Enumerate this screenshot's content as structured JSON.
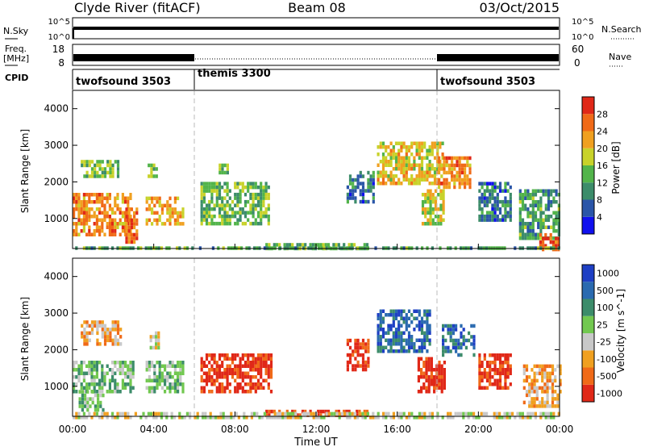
{
  "header": {
    "station": "Clyde River (fitACF)",
    "beam": "Beam 08",
    "date": "03/Oct/2015"
  },
  "strips": {
    "nsky_label": "N.Sky",
    "nsky_ticks": [
      "10^5",
      "10^0"
    ],
    "nsearch_label": "N.Search",
    "nsearch_ticks": [
      "10^5",
      "10^0"
    ],
    "freq_label_1": "Freq.",
    "freq_label_2": "[MHz]",
    "freq_ticks": [
      "18",
      "8"
    ],
    "nave_label": "Nave",
    "nave_ticks": [
      "60",
      "0"
    ],
    "cpid_label": "CPID",
    "cpid_segments": [
      {
        "name": "twofsound 3503",
        "start": 0,
        "end": 6
      },
      {
        "name": "themis 3300",
        "start": 6,
        "end": 18
      },
      {
        "name": "twofsound 3503",
        "start": 18,
        "end": 24
      }
    ]
  },
  "colors": {
    "power": [
      "#1010ee",
      "#2a55a8",
      "#3c8c6a",
      "#52b44a",
      "#c8d22a",
      "#f0a020",
      "#f06a18",
      "#e02818"
    ],
    "velocity": [
      "#1e3fc4",
      "#2a6ab0",
      "#3c8c6a",
      "#72c850",
      "#c8c8c8",
      "#f0a020",
      "#f06a18",
      "#e02818"
    ],
    "ground_scatter": "#c8c8c8"
  },
  "chart_data": [
    {
      "type": "heatmap",
      "panel": "power",
      "xlabel": "",
      "ylabel": "Slant Range [km]",
      "xlim": [
        0,
        24
      ],
      "ylim": [
        180,
        4500
      ],
      "y_ticks": [
        1000,
        2000,
        3000,
        4000
      ],
      "colorbar": {
        "label": "Power [dB]",
        "ticks": [
          "4",
          "8",
          "12",
          "16",
          "20",
          "24",
          "28"
        ],
        "range": [
          0,
          32
        ]
      },
      "regions": [
        {
          "t0": 0.0,
          "t1": 2.8,
          "r0": 600,
          "r1": 1700,
          "value": 24
        },
        {
          "t0": 2.6,
          "t1": 3.2,
          "r0": 350,
          "r1": 1300,
          "value": 26
        },
        {
          "t0": 0.4,
          "t1": 2.2,
          "r0": 2200,
          "r1": 2600,
          "value": 14
        },
        {
          "t0": 3.7,
          "t1": 4.1,
          "r0": 2200,
          "r1": 2500,
          "value": 16
        },
        {
          "t0": 3.6,
          "t1": 5.4,
          "r0": 900,
          "r1": 1600,
          "value": 22
        },
        {
          "t0": 6.3,
          "t1": 9.7,
          "r0": 900,
          "r1": 2000,
          "value": 14
        },
        {
          "t0": 7.2,
          "t1": 7.6,
          "r0": 2300,
          "r1": 2500,
          "value": 14
        },
        {
          "t0": 13.5,
          "t1": 14.8,
          "r0": 1500,
          "r1": 2300,
          "value": 8
        },
        {
          "t0": 15.0,
          "t1": 18.2,
          "r0": 2000,
          "r1": 3100,
          "value": 20
        },
        {
          "t0": 17.2,
          "t1": 18.3,
          "r0": 900,
          "r1": 1800,
          "value": 18
        },
        {
          "t0": 18.0,
          "t1": 19.6,
          "r0": 1900,
          "r1": 2700,
          "value": 24
        },
        {
          "t0": 20.0,
          "t1": 21.6,
          "r0": 1000,
          "r1": 2000,
          "value": 8
        },
        {
          "t0": 22.0,
          "t1": 24.0,
          "r0": 500,
          "r1": 1800,
          "value": 12
        },
        {
          "t0": 23.0,
          "t1": 24.0,
          "r0": 200,
          "r1": 600,
          "value": 28
        },
        {
          "t0": 9.5,
          "t1": 14.5,
          "r0": 200,
          "r1": 330,
          "value": 14
        },
        {
          "t0": 0.0,
          "t1": 24.0,
          "r0": 180,
          "r1": 240,
          "value": 12
        }
      ]
    },
    {
      "type": "heatmap",
      "panel": "velocity",
      "xlabel": "Time UT",
      "ylabel": "Slant Range [km]",
      "xlim": [
        0,
        24
      ],
      "ylim": [
        180,
        4500
      ],
      "x_ticks": [
        "00:00",
        "04:00",
        "08:00",
        "12:00",
        "16:00",
        "20:00",
        "00:00"
      ],
      "y_ticks": [
        1000,
        2000,
        3000,
        4000
      ],
      "colorbar": {
        "label": "Velocity [m s^-1]",
        "ticks": [
          "1000",
          "500",
          "100",
          "25",
          "-25",
          "-100",
          "-500",
          "-1000"
        ]
      },
      "regions": [
        {
          "t0": 0.0,
          "t1": 3.0,
          "r0": 900,
          "r1": 1700,
          "value": 3
        },
        {
          "t0": 0.4,
          "t1": 2.4,
          "r0": 2200,
          "r1": 2800,
          "value": 5
        },
        {
          "t0": 0.3,
          "t1": 1.5,
          "r0": 400,
          "r1": 900,
          "value": 3
        },
        {
          "t0": 3.6,
          "t1": 5.4,
          "r0": 900,
          "r1": 1700,
          "value": 3
        },
        {
          "t0": 3.8,
          "t1": 4.2,
          "r0": 2100,
          "r1": 2500,
          "value": 4
        },
        {
          "t0": 6.3,
          "t1": 9.8,
          "r0": 900,
          "r1": 1900,
          "value": 7
        },
        {
          "t0": 13.5,
          "t1": 14.6,
          "r0": 1500,
          "r1": 2300,
          "value": 7
        },
        {
          "t0": 15.0,
          "t1": 17.6,
          "r0": 2000,
          "r1": 3100,
          "value": 1
        },
        {
          "t0": 17.0,
          "t1": 18.3,
          "r0": 900,
          "r1": 1800,
          "value": 7
        },
        {
          "t0": 18.2,
          "t1": 19.8,
          "r0": 1900,
          "r1": 2700,
          "value": 1
        },
        {
          "t0": 20.0,
          "t1": 21.6,
          "r0": 1000,
          "r1": 1900,
          "value": 7
        },
        {
          "t0": 22.2,
          "t1": 24.0,
          "r0": 500,
          "r1": 1600,
          "value": 5
        },
        {
          "t0": 9.5,
          "t1": 14.5,
          "r0": 200,
          "r1": 360,
          "value": 7
        },
        {
          "t0": 0.0,
          "t1": 24.0,
          "r0": 180,
          "r1": 300,
          "value": 4
        }
      ]
    }
  ]
}
